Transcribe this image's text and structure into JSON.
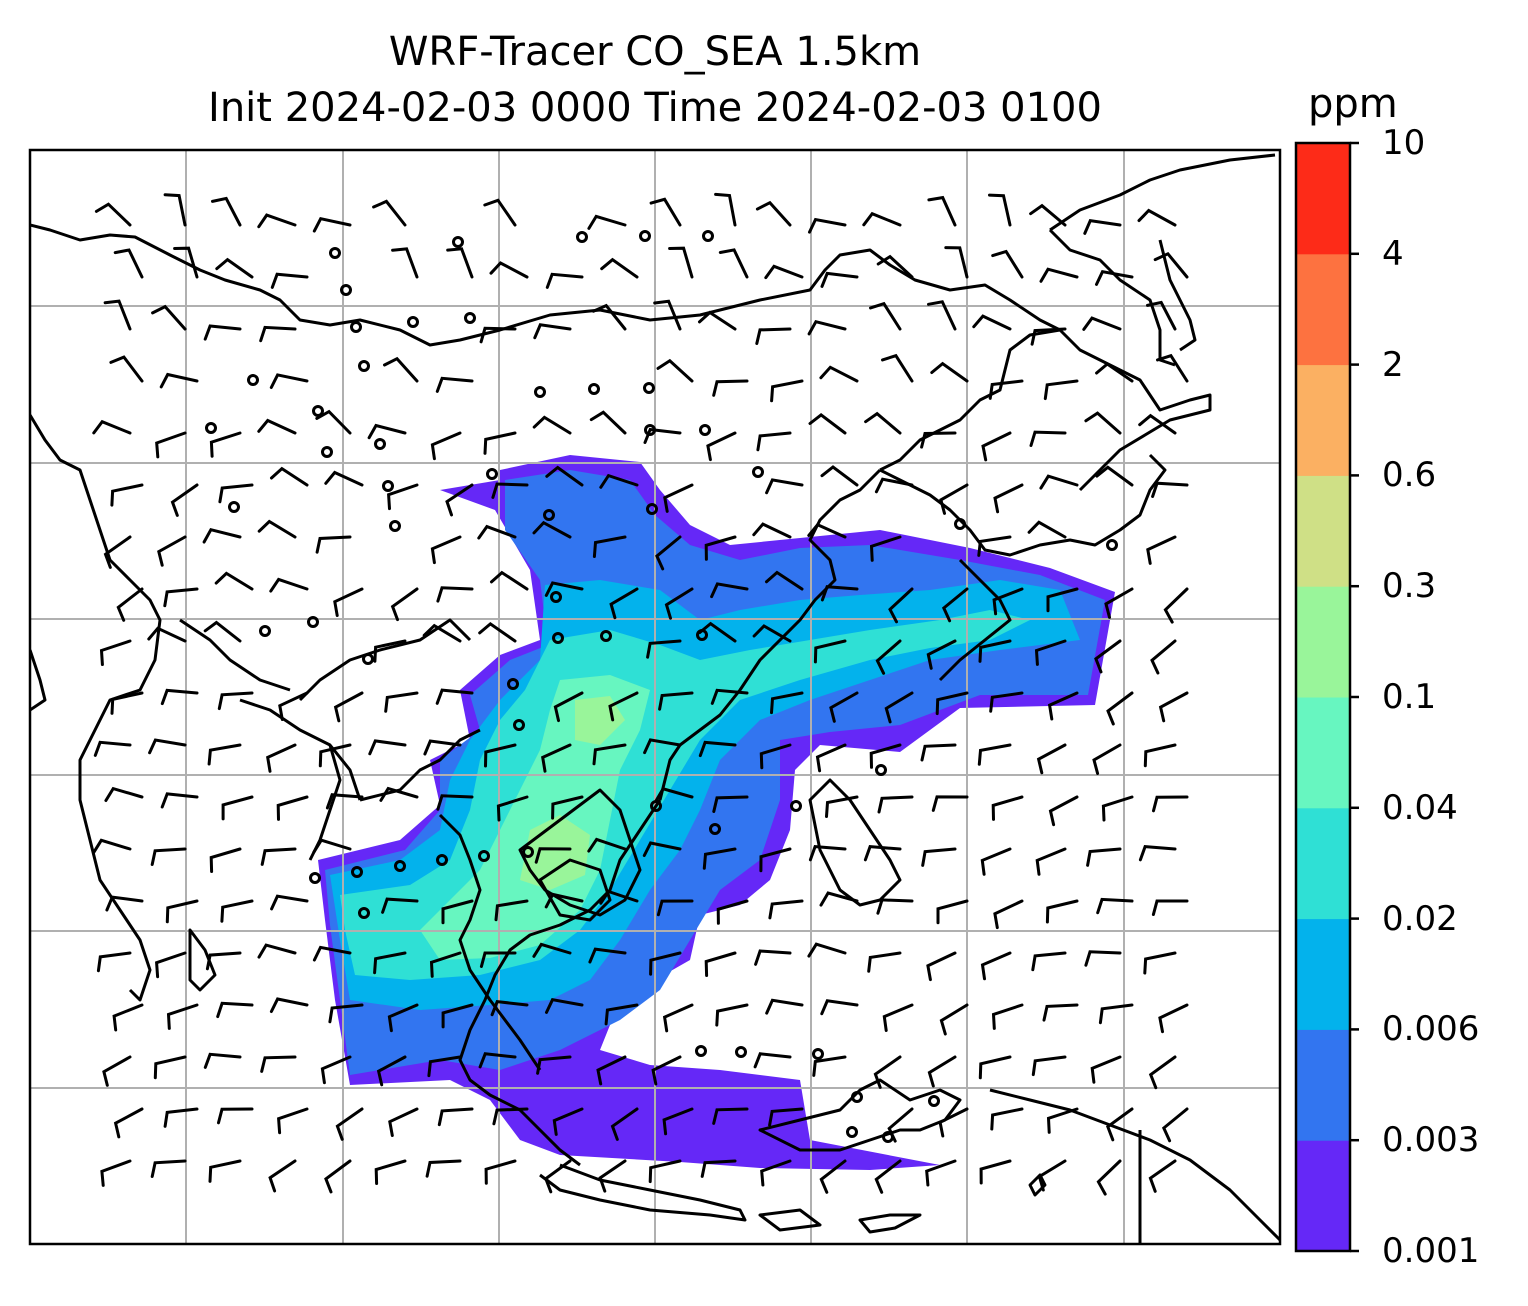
{
  "title": {
    "line1": "WRF-Tracer CO_SEA 1.5km",
    "line2": "Init 2024-02-03 0000 Time 2024-02-03 0100"
  },
  "colorbar": {
    "unit": "ppm",
    "levels": [
      "0.001",
      "0.003",
      "0.006",
      "0.02",
      "0.04",
      "0.1",
      "0.3",
      "0.6",
      "2",
      "4",
      "10"
    ],
    "colors": [
      "#6528f7",
      "#3275f0",
      "#03b2ec",
      "#2fe0d5",
      "#67f6c0",
      "#99f59a",
      "#cfe086",
      "#fbb062",
      "#fd7240",
      "#fd2b18"
    ]
  },
  "map": {
    "gridlines": true,
    "coastline_color": "#000000",
    "wind_barbs_color": "#000000"
  }
}
